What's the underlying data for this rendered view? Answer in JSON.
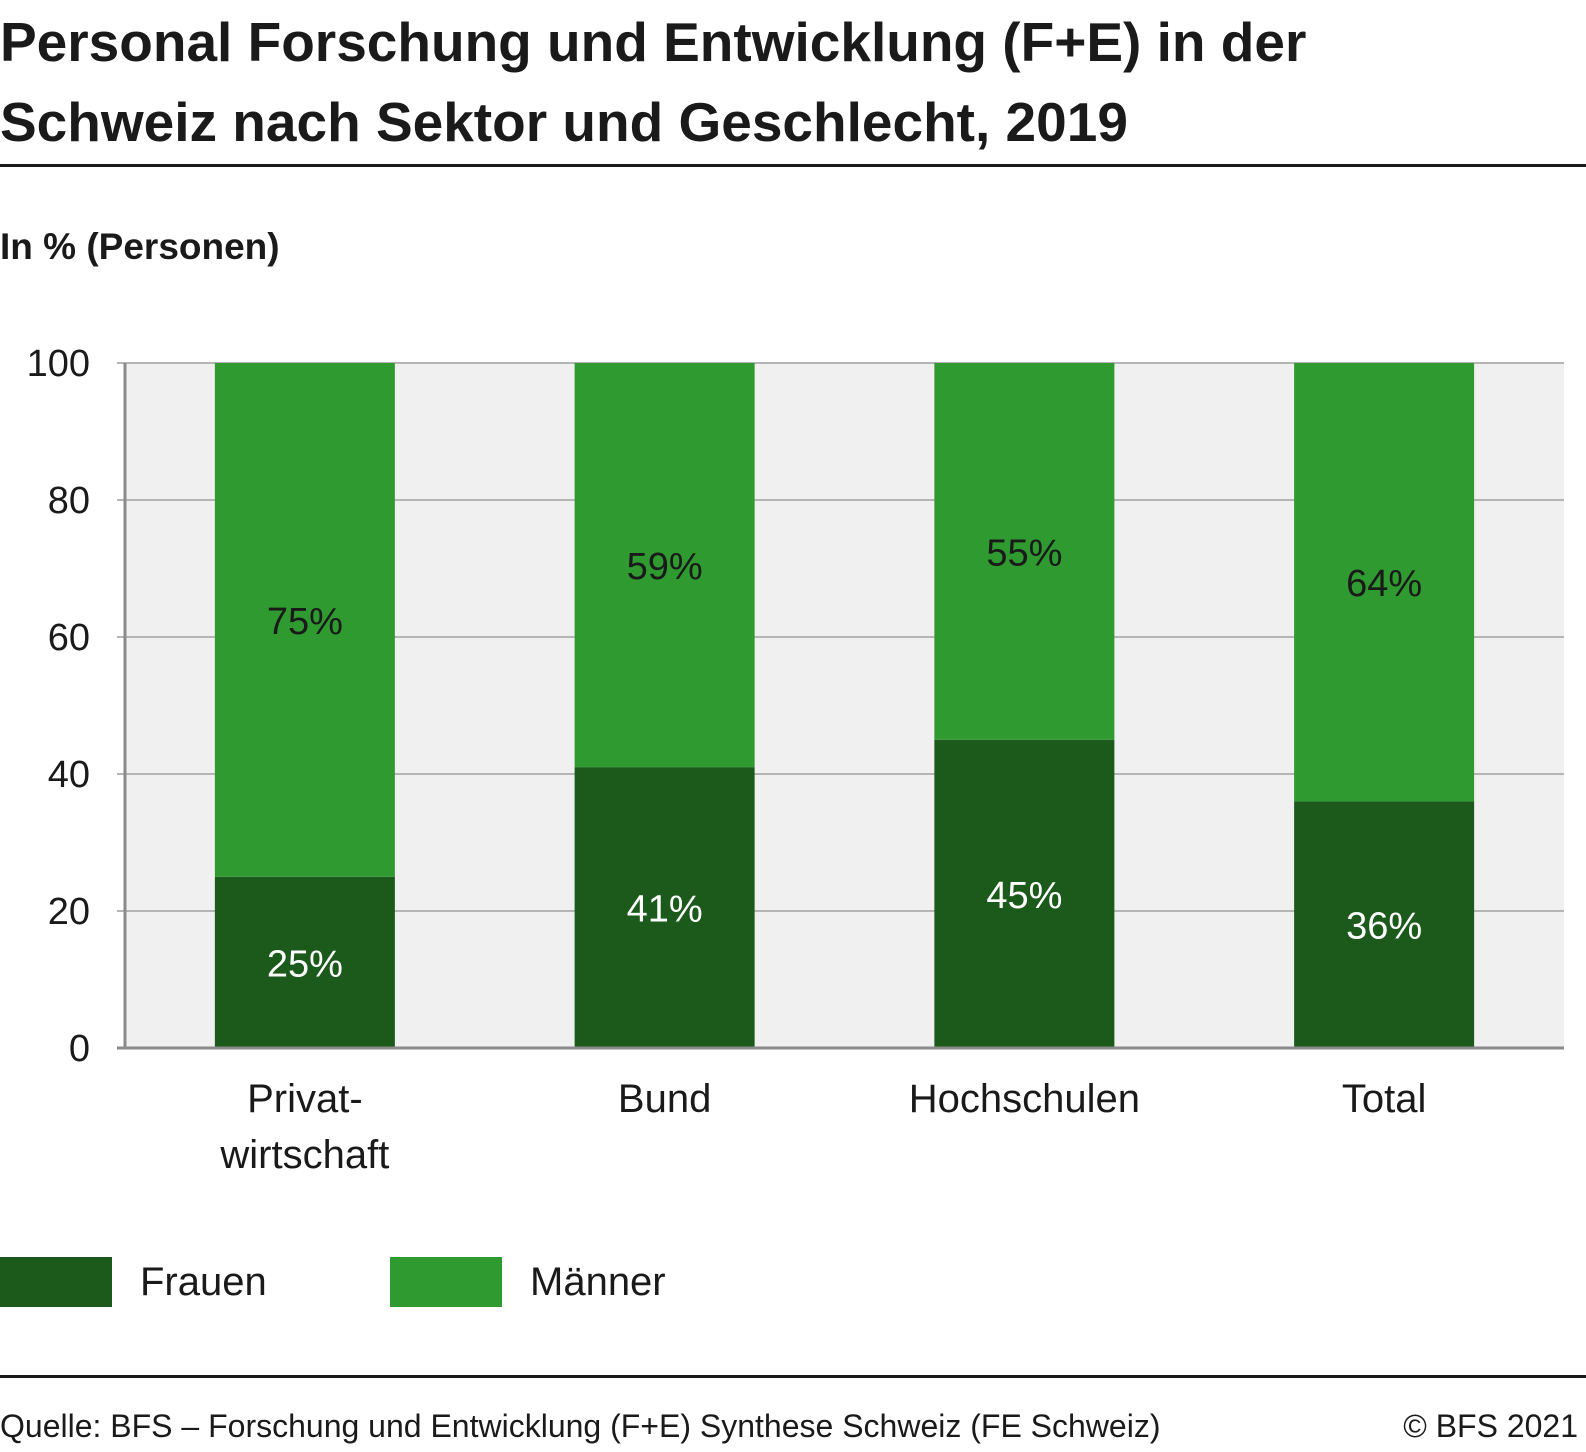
{
  "title": "Personal Forschung und Entwicklung (F+E) in der Schweiz nach Sektor und Geschlecht, 2019",
  "subtitle": "In % (Personen)",
  "source": "Quelle: BFS – Forschung und Entwicklung (F+E) Synthese Schweiz (FE Schweiz)",
  "copyright": "© BFS 2021",
  "colors": {
    "frauen": "#1b5a1b",
    "maenner": "#2f9a2f",
    "plot_bg": "#f0f0f0",
    "grid": "#b5b5b5"
  },
  "legend": [
    {
      "name": "Frauen",
      "color": "#1b5a1b"
    },
    {
      "name": "Männer",
      "color": "#2f9a2f"
    }
  ],
  "chart_data": {
    "type": "bar",
    "stacked": true,
    "categories": [
      [
        "Privat-",
        "wirtschaft"
      ],
      [
        "Bund"
      ],
      [
        "Hochschulen"
      ],
      [
        "Total"
      ]
    ],
    "series": [
      {
        "name": "Frauen",
        "values": [
          25,
          41,
          45,
          36
        ],
        "labels": [
          "25%",
          "41%",
          "45%",
          "36%"
        ]
      },
      {
        "name": "Männer",
        "values": [
          75,
          59,
          55,
          64
        ],
        "labels": [
          "75%",
          "59%",
          "55%",
          "64%"
        ]
      }
    ],
    "ylim": [
      0,
      100
    ],
    "yticks": [
      0,
      20,
      40,
      60,
      80,
      100
    ],
    "xlabel": "",
    "ylabel": "",
    "grid": true,
    "legend_position": "bottom-left"
  }
}
